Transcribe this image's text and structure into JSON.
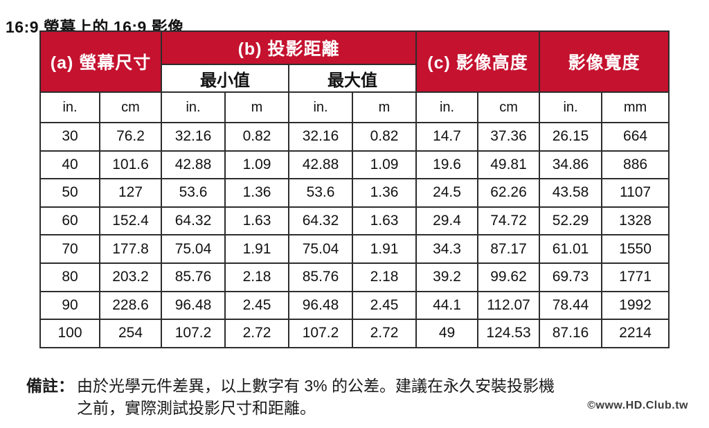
{
  "title": "16:9 螢幕上的 16:9 影像",
  "colors": {
    "header_red": "#c4122f",
    "border": "#2d2d2d",
    "text": "#111111"
  },
  "table": {
    "header_groups": [
      {
        "label": "(a) 螢幕尺寸",
        "colspan": 2,
        "rowspan": 2
      },
      {
        "label": "(b) 投影距離",
        "colspan": 4,
        "rowspan": 1
      },
      {
        "label": "(c) 影像高度",
        "colspan": 2,
        "rowspan": 2
      },
      {
        "label": "影像寬度",
        "colspan": 2,
        "rowspan": 2
      }
    ],
    "subheaders": [
      {
        "label": "最小值",
        "colspan": 2
      },
      {
        "label": "最大值",
        "colspan": 2
      }
    ],
    "units": [
      "in.",
      "cm",
      "in.",
      "m",
      "in.",
      "m",
      "in.",
      "cm",
      "in.",
      "mm"
    ],
    "rows": [
      [
        "30",
        "76.2",
        "32.16",
        "0.82",
        "32.16",
        "0.82",
        "14.7",
        "37.36",
        "26.15",
        "664"
      ],
      [
        "40",
        "101.6",
        "42.88",
        "1.09",
        "42.88",
        "1.09",
        "19.6",
        "49.81",
        "34.86",
        "886"
      ],
      [
        "50",
        "127",
        "53.6",
        "1.36",
        "53.6",
        "1.36",
        "24.5",
        "62.26",
        "43.58",
        "1107"
      ],
      [
        "60",
        "152.4",
        "64.32",
        "1.63",
        "64.32",
        "1.63",
        "29.4",
        "74.72",
        "52.29",
        "1328"
      ],
      [
        "70",
        "177.8",
        "75.04",
        "1.91",
        "75.04",
        "1.91",
        "34.3",
        "87.17",
        "61.01",
        "1550"
      ],
      [
        "80",
        "203.2",
        "85.76",
        "2.18",
        "85.76",
        "2.18",
        "39.2",
        "99.62",
        "69.73",
        "1771"
      ],
      [
        "90",
        "228.6",
        "96.48",
        "2.45",
        "96.48",
        "2.45",
        "44.1",
        "112.07",
        "78.44",
        "1992"
      ],
      [
        "100",
        "254",
        "107.2",
        "2.72",
        "107.2",
        "2.72",
        "49",
        "124.53",
        "87.16",
        "2214"
      ]
    ]
  },
  "note": {
    "label": "備註：",
    "lines": [
      "由於光學元件差異，以上數字有 3% 的公差。建議在永久安裝投影機",
      "之前，實際測試投影尺寸和距離。"
    ]
  },
  "watermark": "©www.HD.Club.tw"
}
